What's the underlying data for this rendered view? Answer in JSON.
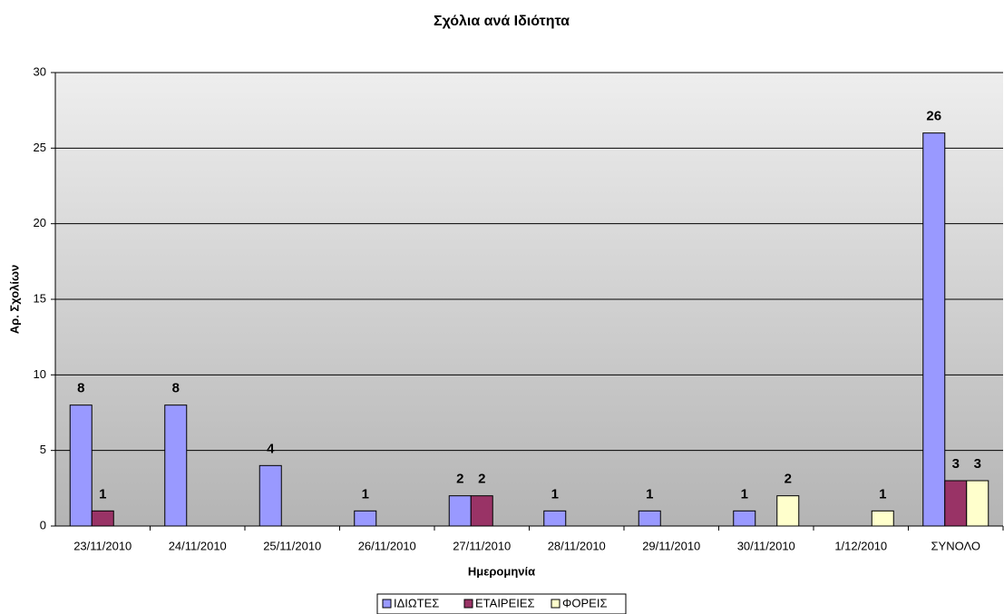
{
  "chart_data": {
    "type": "bar",
    "title": "Σχόλια ανά Ιδιότητα",
    "x_label": "Ημερομηνία",
    "y_label": "Αρ. Σχολίων",
    "categories": [
      "23/11/2010",
      "24/11/2010",
      "25/11/2010",
      "26/11/2010",
      "27/11/2010",
      "28/11/2010",
      "29/11/2010",
      "30/11/2010",
      "1/12/2010",
      "ΣΥΝΟΛΟ"
    ],
    "series": [
      {
        "name": "ΙΔΙΩΤΕΣ",
        "color": "#9999ff",
        "values": [
          8,
          8,
          4,
          1,
          2,
          1,
          1,
          1,
          null,
          26
        ]
      },
      {
        "name": "ΕΤΑΙΡΕΙΕΣ",
        "color": "#993366",
        "values": [
          1,
          null,
          null,
          null,
          2,
          null,
          null,
          null,
          null,
          3
        ]
      },
      {
        "name": "ΦΟΡΕΙΣ",
        "color": "#ffffcc",
        "values": [
          null,
          null,
          null,
          null,
          null,
          null,
          null,
          2,
          1,
          3
        ]
      }
    ],
    "ylim": [
      0,
      30
    ],
    "yticks": [
      0,
      5,
      10,
      15,
      20,
      25,
      30
    ],
    "grid": true,
    "legend": "bottom"
  }
}
